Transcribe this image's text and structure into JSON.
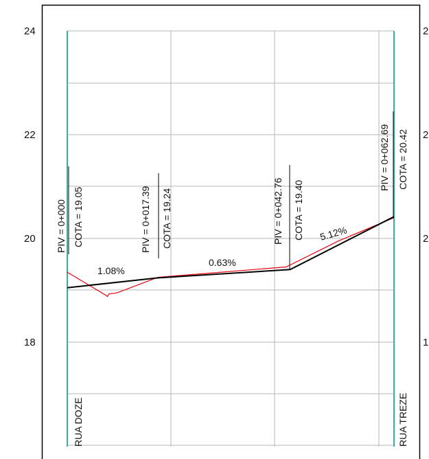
{
  "y_axis": {
    "left_labels": [
      "24",
      "22",
      "20",
      "18"
    ],
    "right_labels": [
      "2",
      "2",
      "2",
      "1"
    ]
  },
  "vertices": [
    {
      "piv": "PIV = 0+000",
      "cota": "COTA = 19.05"
    },
    {
      "piv": "PIV = 0+017.39",
      "cota": "COTA = 19.24"
    },
    {
      "piv": "PIV = 0+042.76",
      "cota": "COTA = 19.40"
    },
    {
      "piv": "PIV = 0+062.69",
      "cota": "COTA = 20.42"
    }
  ],
  "grades": [
    "1.08%",
    "0.63%",
    "5.12%"
  ],
  "streets": {
    "left": "RUA DOZE",
    "right": "RUA TREZE"
  },
  "design_profile": [
    [
      0,
      19.05
    ],
    [
      17.39,
      19.24
    ],
    [
      42.76,
      19.4
    ],
    [
      62.69,
      20.42
    ]
  ],
  "terrain_profile": [
    [
      0,
      19.35
    ],
    [
      7.5,
      18.9
    ],
    [
      7.7,
      18.88
    ],
    [
      8.0,
      18.93
    ],
    [
      9.5,
      18.95
    ],
    [
      17.39,
      19.25
    ],
    [
      42.0,
      19.45
    ],
    [
      52.0,
      19.95
    ],
    [
      62.69,
      20.4
    ]
  ],
  "colors": {
    "design": "#000000",
    "terrain": "#e8000b",
    "street_line": "#3aaea6",
    "grid": "#b4b4b4",
    "frame": "#000000"
  }
}
